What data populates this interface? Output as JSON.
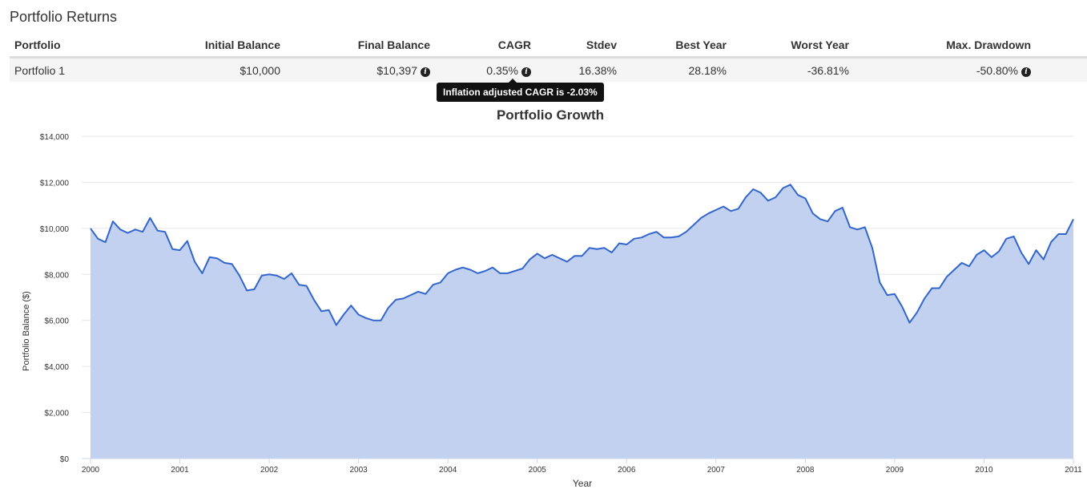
{
  "section_title": "Portfolio Returns",
  "table": {
    "headers": [
      "Portfolio",
      "Initial Balance",
      "Final Balance",
      "CAGR",
      "Stdev",
      "Best Year",
      "Worst Year",
      "Max. Drawdown"
    ],
    "row": {
      "portfolio": "Portfolio 1",
      "initial_balance": "$10,000",
      "final_balance": "$10,397",
      "cagr": "0.35%",
      "stdev": "16.38%",
      "best_year": "28.18%",
      "worst_year": "-36.81%",
      "max_drawdown": "-50.80%"
    }
  },
  "tooltip": "Inflation adjusted CAGR is -2.03%",
  "icons": {
    "info": "info-circle-icon"
  },
  "colors": {
    "line": "#3366cc",
    "fill": "#c2d1f0"
  },
  "chart_data": {
    "type": "area",
    "title": "Portfolio Growth",
    "xlabel": "Year",
    "ylabel": "Portfolio Balance ($)",
    "xlim": [
      2000,
      2011
    ],
    "ylim": [
      0,
      14000
    ],
    "x_ticks": [
      "2000",
      "2001",
      "2002",
      "2003",
      "2004",
      "2005",
      "2006",
      "2007",
      "2008",
      "2009",
      "2010",
      "2011"
    ],
    "y_ticks": [
      "$0",
      "$2,000",
      "$4,000",
      "$6,000",
      "$8,000",
      "$10,000",
      "$12,000",
      "$14,000"
    ],
    "grid": true,
    "series": [
      {
        "name": "Portfolio 1",
        "values": [
          10000,
          9550,
          9400,
          10300,
          9950,
          9800,
          9950,
          9850,
          10450,
          9900,
          9850,
          9100,
          9050,
          9450,
          8550,
          8050,
          8750,
          8700,
          8500,
          8450,
          7950,
          7300,
          7350,
          7950,
          8000,
          7950,
          7800,
          8050,
          7550,
          7500,
          6900,
          6400,
          6450,
          5800,
          6250,
          6650,
          6250,
          6100,
          6000,
          6000,
          6550,
          6900,
          6950,
          7100,
          7250,
          7150,
          7550,
          7650,
          8050,
          8200,
          8300,
          8200,
          8050,
          8150,
          8300,
          8050,
          8050,
          8150,
          8250,
          8650,
          8900,
          8700,
          8850,
          8700,
          8550,
          8800,
          8800,
          9150,
          9100,
          9150,
          8950,
          9350,
          9300,
          9550,
          9600,
          9750,
          9850,
          9600,
          9600,
          9650,
          9850,
          10150,
          10450,
          10650,
          10800,
          10950,
          10750,
          10850,
          11350,
          11700,
          11550,
          11200,
          11350,
          11750,
          11900,
          11450,
          11300,
          10650,
          10400,
          10300,
          10750,
          10900,
          10050,
          9950,
          10050,
          9150,
          7650,
          7100,
          7150,
          6600,
          5900,
          6350,
          6950,
          7400,
          7400,
          7900,
          8200,
          8500,
          8350,
          8850,
          9050,
          8750,
          9000,
          9550,
          9650,
          8950,
          8450,
          9050,
          8650,
          9400,
          9750,
          9750,
          10400
        ]
      }
    ]
  }
}
